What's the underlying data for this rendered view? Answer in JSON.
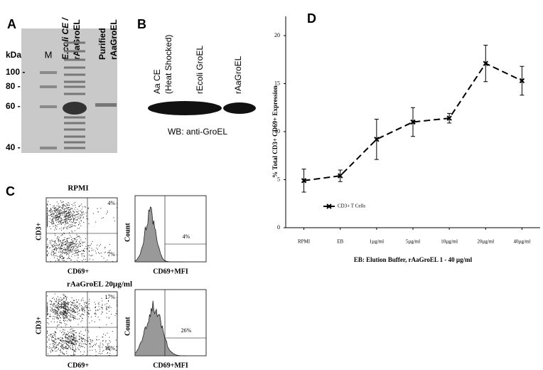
{
  "panels": {
    "a": {
      "label": "A",
      "unit": "kDa",
      "lanes": [
        "M",
        "E.coli CE /",
        "rAaGroEL",
        "Purified",
        "rAaGroEL"
      ],
      "markers": [
        "100 -",
        "80 -",
        "60 -",
        "40 -"
      ]
    },
    "b": {
      "label": "B",
      "lanes": [
        "Aa CE",
        "(Heat Shocked)",
        "rEcoli GroEL",
        "rAaGroEL"
      ],
      "caption": "WB: anti-GroEL"
    },
    "c": {
      "label": "C",
      "rows": [
        {
          "title": "RPMI",
          "dot_y": "CD3+",
          "dot_x": "CD69+",
          "quadrants": [
            "4%",
            "7%"
          ],
          "hist_y": "Count",
          "hist_x": "CD69+MFI",
          "hist_gate": "4%"
        },
        {
          "title": "rAaGroEL 20µg/ml",
          "dot_y": "CD3+",
          "dot_x": "CD69+",
          "quadrants": [
            "17%",
            "16%"
          ],
          "hist_y": "Count",
          "hist_x": "CD69+MFI",
          "hist_gate": "26%"
        }
      ]
    },
    "d": {
      "label": "D"
    }
  },
  "chart_data": {
    "type": "line",
    "ylabel": "% Total CD3+ CD69+ Expression",
    "xlabel": "EB: Elution Buffer, rAaGroEL 1 - 40 µg/ml",
    "categories": [
      "RPMI",
      "EB",
      "1µg/ml",
      "5µg/ml",
      "10µg/ml",
      "20µg/ml",
      "40µg/ml"
    ],
    "series": [
      {
        "name": "CD3+ T Cells",
        "color": "#000000",
        "values": [
          4.9,
          5.4,
          9.2,
          11.0,
          11.4,
          17.1,
          15.3
        ],
        "errors": [
          1.2,
          0.6,
          2.1,
          1.5,
          0.5,
          1.9,
          1.5
        ]
      }
    ],
    "ylim": [
      0,
      22
    ],
    "yticks": [
      0,
      5,
      10,
      15,
      20
    ],
    "grid": false,
    "legend": "lower-left"
  }
}
